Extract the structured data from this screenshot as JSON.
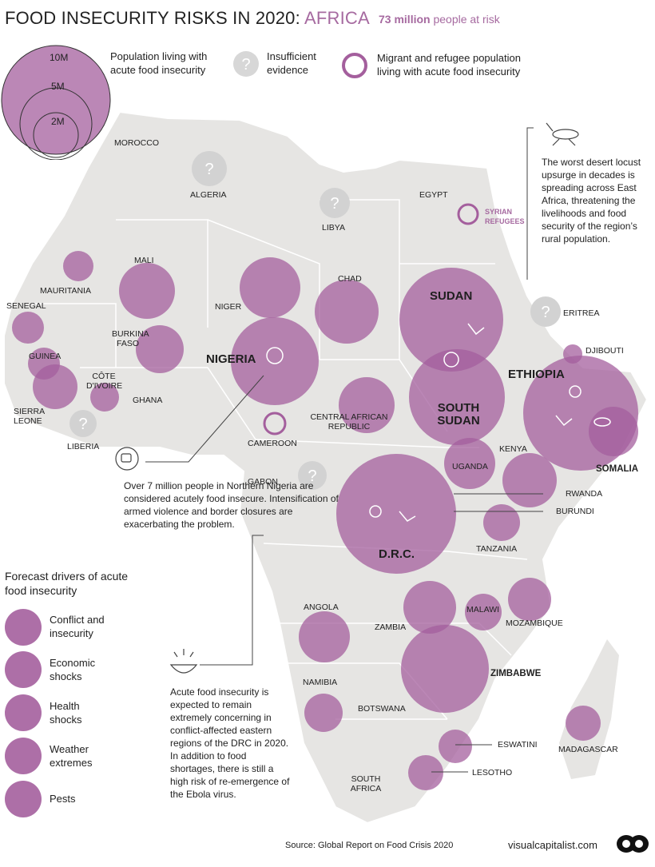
{
  "header": {
    "title_main": "FOOD INSECURITY RISKS IN 2020: ",
    "title_region": "AFRICA",
    "risk_number": "73 million",
    "risk_text": " people at risk"
  },
  "legend": {
    "size_10m": "10M",
    "size_5m": "5M",
    "size_2m": "2M",
    "population_label": "Population living with acute food insecurity",
    "insufficient_label": "Insufficient evidence",
    "migrant_label": "Migrant and refugee population living with acute food insecurity"
  },
  "countries": {
    "morocco": "MOROCCO",
    "algeria": "ALGERIA",
    "libya": "LIBYA",
    "egypt": "EGYPT",
    "syrian": "SYRIAN REFUGEES",
    "mali": "MALI",
    "mauritania": "MAURITANIA",
    "niger": "NIGER",
    "chad": "CHAD",
    "sudan": "SUDAN",
    "eritrea": "ERITREA",
    "senegal": "SENEGAL",
    "burkina": "BURKINA FASO",
    "nigeria": "NIGERIA",
    "djibouti": "DJIBOUTI",
    "guinea": "GUINEA",
    "cote": "CÔTE D'IVOIRE",
    "ghana": "GHANA",
    "ethiopia": "ETHIOPIA",
    "sierra": "SIERRA LEONE",
    "car": "CENTRAL AFRICAN REPUBLIC",
    "south_sudan": "SOUTH SUDAN",
    "liberia": "LIBERIA",
    "cameroon": "CAMEROON",
    "kenya": "KENYA",
    "uganda": "UGANDA",
    "somalia": "SOMALIA",
    "gabon": "GABON",
    "rwanda": "RWANDA",
    "burundi": "BURUNDI",
    "drc": "D.R.C.",
    "tanzania": "TANZANIA",
    "angola": "ANGOLA",
    "zambia": "ZAMBIA",
    "malawi": "MALAWI",
    "mozambique": "MOZAMBIQUE",
    "zimbabwe": "ZIMBABWE",
    "namibia": "NAMIBIA",
    "botswana": "BOTSWANA",
    "eswatini": "ESWATINI",
    "madagascar": "MADAGASCAR",
    "lesotho": "LESOTHO",
    "south_africa": "SOUTH AFRICA"
  },
  "notes": {
    "locust": "The worst desert locust upsurge in decades is spreading across East Africa, threatening the livelihoods and food security of the region’s rural population.",
    "nigeria": "Over 7 million people in Northern Nigeria are considered acutely food insecure. Intensification of armed violence and border closures are exacerbating the problem.",
    "drc": "Acute food insecurity is expected to remain extremely concerning in conflict-affected eastern regions of the DRC in 2020. In addition to food shortages, there is still a high risk of re-emergence of the Ebola virus."
  },
  "drivers": {
    "title": "Forecast drivers of acute food insecurity",
    "conflict": "Conflict and insecurity",
    "economic": "Economic shocks",
    "health": "Health shocks",
    "weather": "Weather extremes",
    "pests": "Pests"
  },
  "footer": {
    "source": "Source: Global Report on Food Crisis 2020",
    "brand": "visualcapitalist.com"
  },
  "colors": {
    "accent": "#a66aa0",
    "bubble": "#a45f9d",
    "map": "#e6e5e3",
    "grey_bubble": "#cfcfcf"
  }
}
